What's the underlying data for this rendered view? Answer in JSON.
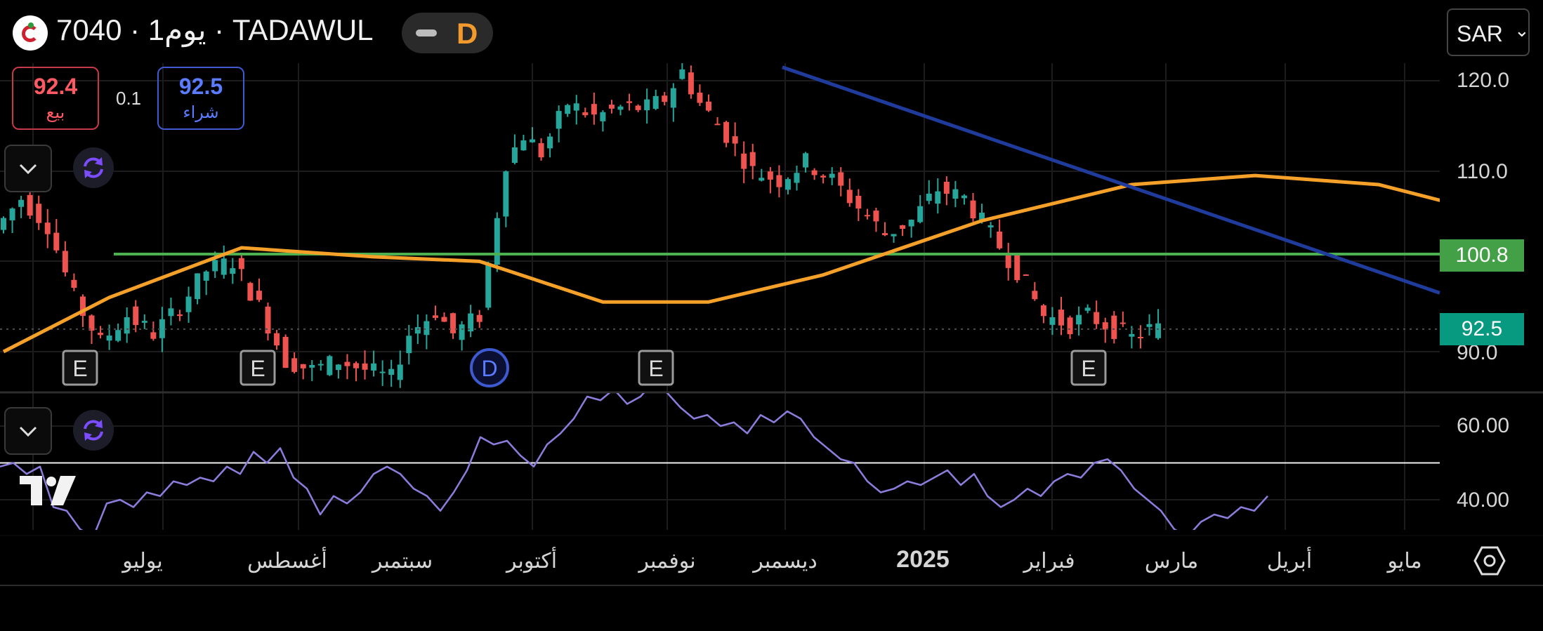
{
  "header": {
    "symbol_line": "7040 · 1يوم · TADAWUL",
    "pill_letter": "D",
    "currency": "SAR",
    "currency_chevron": "⌄"
  },
  "quote": {
    "sell_price": "92.4",
    "sell_label": "بيع",
    "spread": "0.1",
    "buy_price": "92.5",
    "buy_label": "شراء"
  },
  "price_tags": {
    "horizontal_line": "100.8",
    "last_price": "92.5"
  },
  "events": [
    "E",
    "E",
    "D",
    "E",
    "E"
  ],
  "colors": {
    "up": "#26a69a",
    "down": "#ef5350",
    "ma": "#f5a028",
    "trendline": "#1f3c9c",
    "support": "#4caf50",
    "rsi": "#8e7cdd",
    "last_tag": "#089981",
    "support_tag": "#43a047"
  },
  "icons": [
    "logo-icon",
    "chevron-down-icon",
    "refresh-icon",
    "tradingview-logo-icon",
    "settings-hexagon-icon"
  ],
  "chart_data": [
    {
      "type": "candlestick",
      "title": "",
      "y_ticks": [
        "120.0",
        "110.0",
        "90.0"
      ],
      "ylim": [
        85.5,
        124.5
      ],
      "x_labels": [
        "يوليو",
        "أغسطس",
        "سبتمبر",
        "أكتوبر",
        "نوفمبر",
        "ديسمبر",
        "2025",
        "فبراير",
        "مارس",
        "أبريل",
        "مايو"
      ],
      "price_path": [
        [
          0,
          103.5
        ],
        [
          3,
          107
        ],
        [
          6,
          104
        ],
        [
          9,
          96
        ],
        [
          12,
          91
        ],
        [
          15,
          94
        ],
        [
          18,
          92
        ],
        [
          21,
          95
        ],
        [
          24,
          99
        ],
        [
          27,
          100
        ],
        [
          30,
          95
        ],
        [
          33,
          89
        ],
        [
          36,
          88
        ],
        [
          39,
          89
        ],
        [
          42,
          88
        ],
        [
          45,
          87
        ],
        [
          47,
          92
        ],
        [
          50,
          94.5
        ],
        [
          52,
          92
        ],
        [
          55,
          94
        ],
        [
          58,
          111
        ],
        [
          60,
          114
        ],
        [
          62,
          112
        ],
        [
          65,
          117.5
        ],
        [
          68,
          116
        ],
        [
          71,
          117
        ],
        [
          74,
          117
        ],
        [
          76,
          118
        ],
        [
          78,
          121
        ],
        [
          80,
          117.5
        ],
        [
          83,
          114
        ],
        [
          86,
          110
        ],
        [
          89,
          109
        ],
        [
          92,
          111
        ],
        [
          95,
          109
        ],
        [
          98,
          106
        ],
        [
          101,
          103
        ],
        [
          104,
          104.5
        ],
        [
          107,
          108
        ],
        [
          110,
          107
        ],
        [
          113,
          103
        ],
        [
          116,
          99
        ],
        [
          119,
          94
        ],
        [
          122,
          93
        ],
        [
          124,
          94
        ],
        [
          127,
          92.5
        ],
        [
          129,
          91.5
        ],
        [
          131,
          92.5
        ]
      ],
      "moving_average": [
        [
          0,
          90
        ],
        [
          12,
          96
        ],
        [
          27,
          101.5
        ],
        [
          42,
          100.5
        ],
        [
          54,
          100
        ],
        [
          68,
          95.5
        ],
        [
          80,
          95.5
        ],
        [
          93,
          98.5
        ],
        [
          111,
          104.5
        ],
        [
          128,
          108.5
        ],
        [
          142,
          109.5
        ],
        [
          156,
          108.5
        ],
        [
          168,
          105.5
        ]
      ],
      "support_line": 100.8,
      "trendline": [
        [
          78,
          121.5
        ],
        [
          165,
          96.5
        ]
      ],
      "last_price": 92.5
    },
    {
      "type": "line",
      "title": "",
      "y_ticks": [
        "60.00",
        "40.00"
      ],
      "ylim": [
        31,
        73
      ],
      "reference_line": 50,
      "values": [
        49,
        50,
        47,
        49,
        38,
        37,
        32,
        30,
        39,
        40,
        38,
        42,
        41,
        45,
        44,
        46,
        45,
        49,
        47,
        53,
        50,
        54,
        46,
        43,
        36,
        41,
        39,
        42,
        47,
        49,
        47,
        43,
        41,
        37,
        42,
        48,
        57,
        55,
        56,
        52,
        49,
        55,
        58,
        62,
        68,
        67,
        70,
        66,
        68,
        72,
        69,
        65,
        62,
        63,
        60,
        61,
        58,
        63,
        61,
        64,
        62,
        57,
        54,
        51,
        50,
        45,
        42,
        43,
        45,
        44,
        46,
        48,
        44,
        47,
        41,
        38,
        40,
        43,
        41,
        45,
        47,
        46,
        50,
        51,
        48,
        43,
        40,
        37,
        32,
        30,
        34,
        36,
        35,
        38,
        37,
        41
      ]
    }
  ]
}
